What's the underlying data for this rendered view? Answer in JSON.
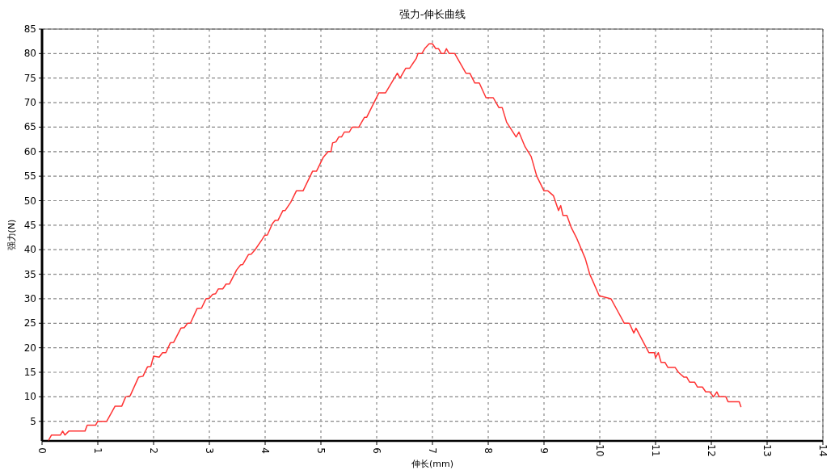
{
  "chart_data": {
    "type": "line",
    "title": "强力-伸长曲线",
    "xlabel": "伸长(mm)",
    "ylabel": "强力(N)",
    "xlim": [
      0,
      14
    ],
    "ylim": [
      1,
      85
    ],
    "xticks": [
      0,
      1,
      2,
      3,
      4,
      5,
      6,
      7,
      8,
      9,
      10,
      11,
      12,
      13,
      14
    ],
    "yticks": [
      5,
      10,
      15,
      20,
      25,
      30,
      35,
      40,
      45,
      50,
      55,
      60,
      65,
      70,
      75,
      80,
      85
    ],
    "grid": true,
    "series": [
      {
        "color": "#ff3333",
        "x": [
          0.12,
          0.17,
          0.33,
          0.37,
          0.41,
          0.48,
          0.77,
          0.81,
          0.96,
          1.0,
          1.16,
          1.31,
          1.43,
          1.5,
          1.58,
          1.73,
          1.81,
          1.89,
          1.95,
          2.0,
          2.1,
          2.16,
          2.22,
          2.3,
          2.36,
          2.49,
          2.55,
          2.61,
          2.66,
          2.78,
          2.86,
          2.94,
          3.0,
          3.06,
          3.11,
          3.16,
          3.24,
          3.3,
          3.36,
          3.49,
          3.56,
          3.6,
          3.7,
          3.75,
          3.82,
          3.94,
          3.99,
          4.04,
          4.13,
          4.18,
          4.23,
          4.32,
          4.36,
          4.46,
          4.56,
          4.68,
          4.85,
          4.92,
          5.04,
          5.13,
          5.18,
          5.21,
          5.27,
          5.32,
          5.37,
          5.42,
          5.51,
          5.56,
          5.68,
          5.78,
          5.82,
          6.04,
          6.16,
          6.37,
          6.42,
          6.52,
          6.59,
          6.71,
          6.74,
          6.81,
          6.86,
          6.94,
          7.0,
          7.06,
          7.11,
          7.16,
          7.21,
          7.25,
          7.3,
          7.4,
          7.6,
          7.67,
          7.76,
          7.84,
          7.96,
          8.09,
          8.19,
          8.25,
          8.33,
          8.5,
          8.55,
          8.66,
          8.77,
          8.87,
          9.0,
          9.07,
          9.17,
          9.26,
          9.3,
          9.34,
          9.41,
          9.49,
          9.58,
          9.74,
          9.82,
          9.86,
          9.99,
          10.2,
          10.44,
          10.53,
          10.61,
          10.65,
          10.88,
          10.98,
          11.0,
          11.05,
          11.1,
          11.17,
          11.22,
          11.35,
          11.41,
          11.51,
          11.56,
          11.61,
          11.7,
          11.75,
          11.84,
          11.9,
          11.97,
          12.04,
          12.1,
          12.14,
          12.26,
          12.3,
          12.5,
          12.53
        ],
        "values": [
          1.2,
          2.2,
          2.2,
          3,
          2.2,
          3,
          3,
          4.2,
          4.2,
          5,
          5,
          8.1,
          8.1,
          10,
          10.2,
          14,
          14.2,
          16.1,
          16.2,
          18.3,
          18.1,
          19,
          19,
          21,
          21.1,
          24,
          24.1,
          25,
          25,
          28,
          28.1,
          30,
          30.1,
          30.9,
          31,
          32,
          32,
          33,
          33,
          35.9,
          36.9,
          37,
          39,
          39.1,
          40,
          42,
          42.9,
          43,
          45.3,
          46,
          46,
          48,
          48,
          49.7,
          52,
          52,
          56,
          56,
          58.8,
          60,
          60,
          61.8,
          62,
          63,
          63,
          64,
          64,
          65,
          65,
          67,
          67,
          72,
          72,
          76,
          75,
          77,
          77,
          79,
          80,
          80,
          81,
          82,
          82,
          81,
          81,
          80,
          80,
          81,
          80,
          80,
          76,
          76,
          74,
          74,
          71,
          71,
          69,
          69,
          66,
          63,
          64,
          61,
          59,
          55,
          52,
          52,
          51,
          48,
          49,
          47,
          47,
          44.5,
          42.5,
          38.2,
          35,
          34,
          30.6,
          30,
          25,
          25,
          23,
          24,
          19,
          19,
          18,
          19,
          17,
          17,
          16,
          16,
          15,
          14,
          14,
          13,
          13,
          12,
          12,
          11,
          11,
          10,
          11,
          10,
          10,
          9,
          9,
          8
        ]
      }
    ]
  }
}
